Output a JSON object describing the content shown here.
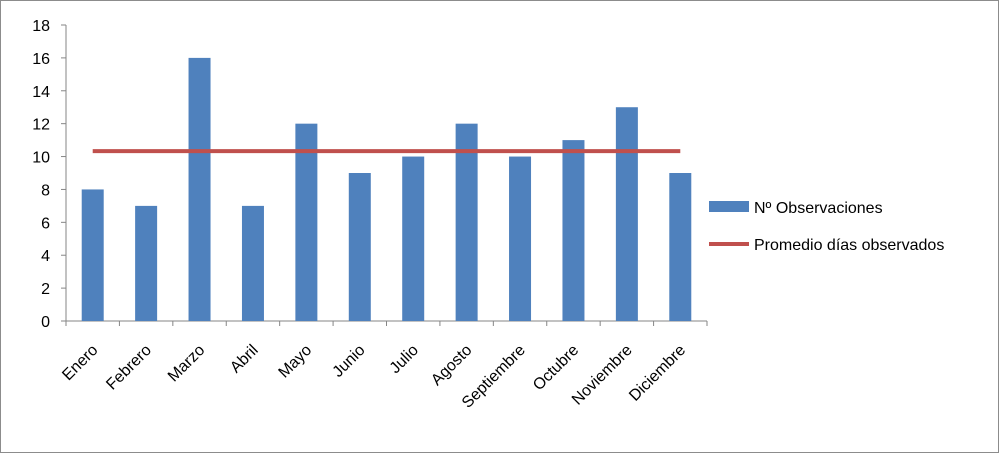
{
  "chart_data": {
    "type": "bar",
    "categories": [
      "Enero",
      "Febrero",
      "Marzo",
      "Abril",
      "Mayo",
      "Junio",
      "Julio",
      "Agosto",
      "Septiembre",
      "Octubre",
      "Noviembre",
      "Diciembre"
    ],
    "series": [
      {
        "name": "Nº Observaciones",
        "type": "bar",
        "color": "#4f81bd",
        "values": [
          8,
          7,
          16,
          7,
          12,
          9,
          10,
          12,
          10,
          11,
          13,
          9
        ]
      },
      {
        "name": "Promedio días observados",
        "type": "line",
        "color": "#c0504d",
        "values": [
          10.33,
          10.33,
          10.33,
          10.33,
          10.33,
          10.33,
          10.33,
          10.33,
          10.33,
          10.33,
          10.33,
          10.33
        ]
      }
    ],
    "yticks": [
      "0",
      "2",
      "4",
      "6",
      "8",
      "10",
      "12",
      "14",
      "16",
      "18"
    ],
    "ylim": [
      0,
      18
    ],
    "grid": false,
    "legend_position": "right"
  }
}
